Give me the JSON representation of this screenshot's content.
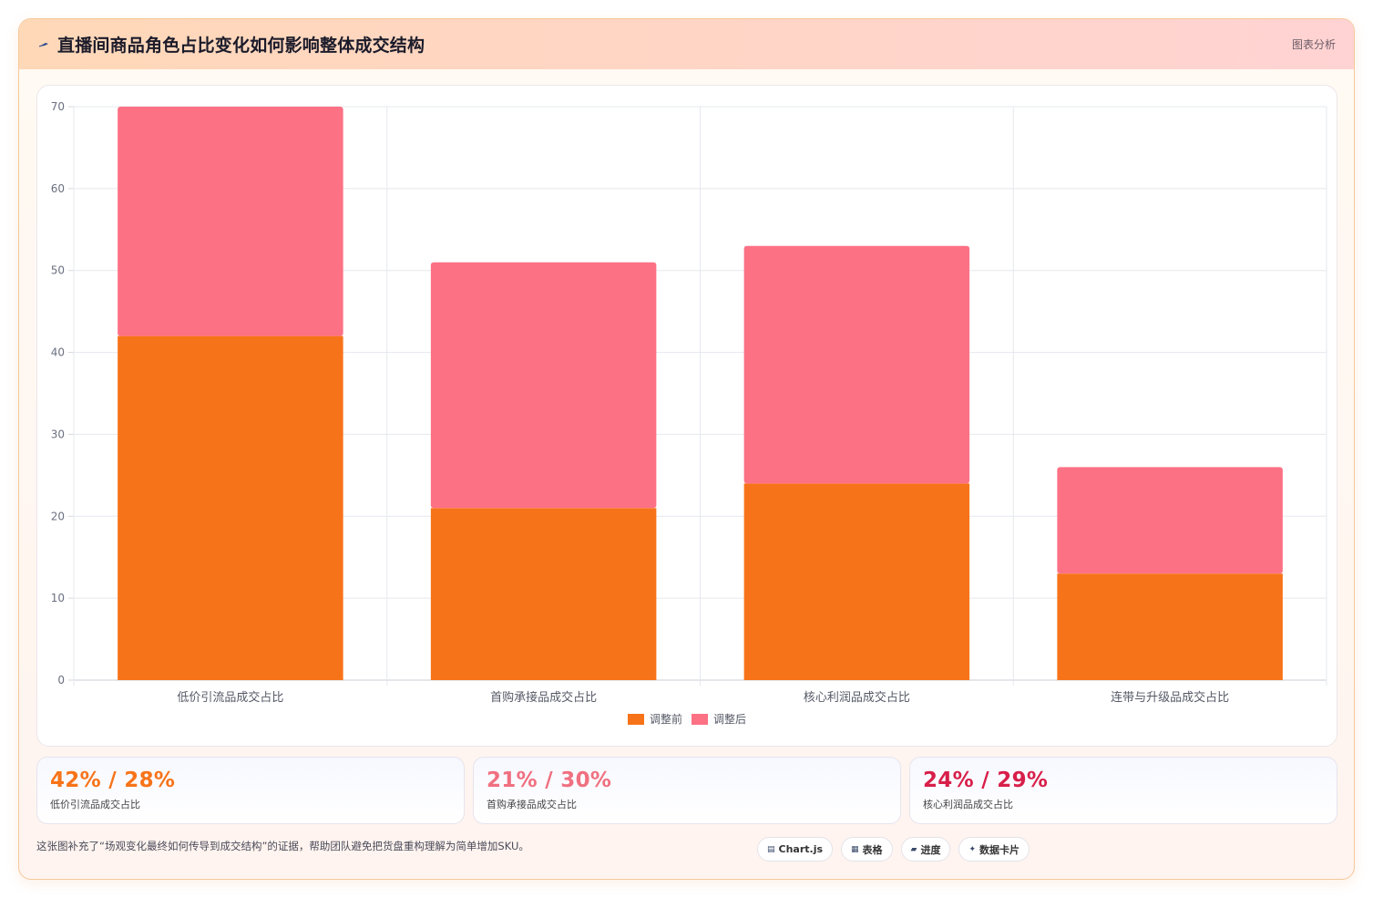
{
  "header": {
    "title": "直播间商品角色占比变化如何影响整体成交结构",
    "right_label": "图表分析",
    "icon": "pin-icon"
  },
  "chart_data": {
    "type": "bar",
    "stacked": true,
    "categories": [
      "低价引流品成交占比",
      "首购承接品成交占比",
      "核心利润品成交占比",
      "连带与升级品成交占比"
    ],
    "series": [
      {
        "name": "调整前",
        "values": [
          42,
          21,
          24,
          13
        ],
        "color": "#f77319"
      },
      {
        "name": "调整后",
        "values": [
          28,
          30,
          29,
          13
        ],
        "color": "#fd7185"
      }
    ],
    "yticks": [
      0,
      10,
      20,
      30,
      40,
      50,
      60,
      70
    ],
    "ylim": [
      0,
      70
    ],
    "grid": true,
    "legend_position": "bottom"
  },
  "stats": [
    {
      "value": "42% / 28%",
      "label": "低价引流品成交占比",
      "color": "#f77319"
    },
    {
      "value": "21% / 30%",
      "label": "首购承接品成交占比",
      "color": "#f07080"
    },
    {
      "value": "24% / 29%",
      "label": "核心利润品成交占比",
      "color": "#d81f4a"
    }
  ],
  "footer": {
    "note": "这张图补充了“场观变化最终如何传导到成交结构”的证据，帮助团队避免把货盘重构理解为简单增加SKU。",
    "chips": [
      {
        "icon": "chart-icon",
        "label": "Chart.js"
      },
      {
        "icon": "table-icon",
        "label": "表格"
      },
      {
        "icon": "progress-icon",
        "label": "进度"
      },
      {
        "icon": "sparkle-icon",
        "label": "数据卡片"
      }
    ]
  }
}
